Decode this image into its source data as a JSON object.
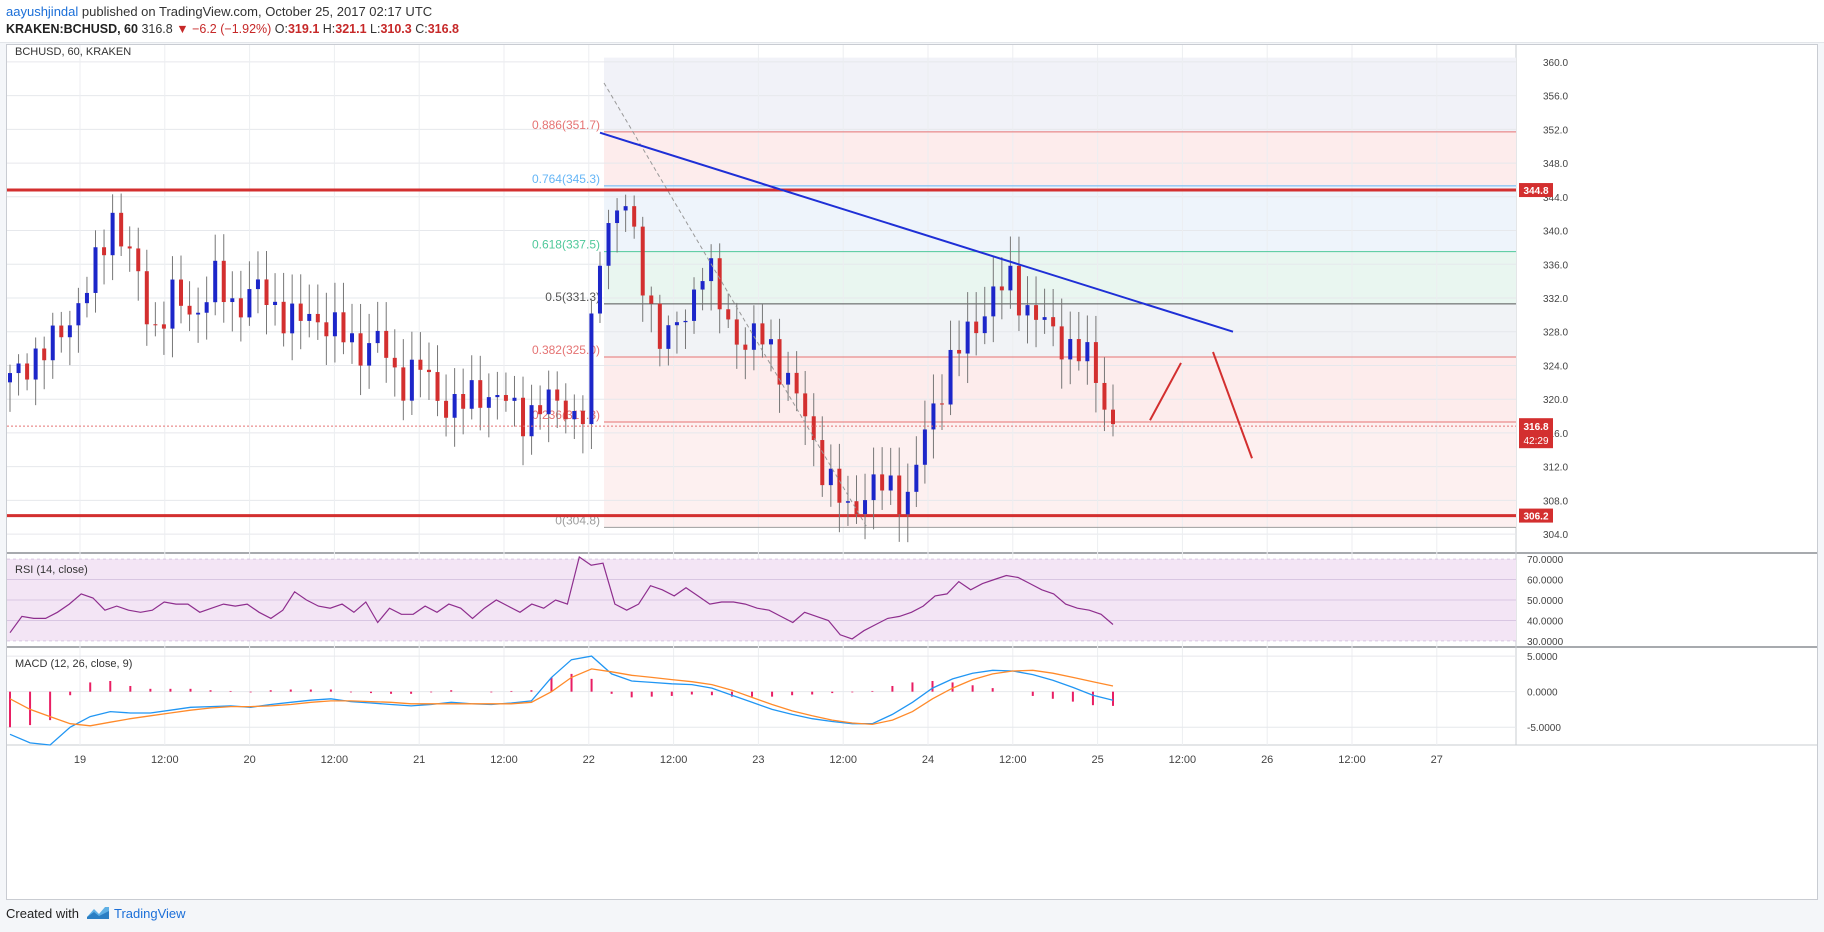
{
  "header": {
    "author": "aayushjindal",
    "published": " published on TradingView.com, October 25, 2017 02:17 UTC",
    "symbol": "KRAKEN:BCHUSD, 60",
    "last": "316.8",
    "change_arrow": "▼",
    "change": "−6.2 (−1.92%)",
    "o_label": "O:",
    "o": "319.1",
    "h_label": "H:",
    "h": "321.1",
    "l_label": "L:",
    "l": "310.3",
    "c_label": "C:",
    "c": "316.8"
  },
  "footer": {
    "created": "Created with",
    "brand": "TradingView"
  },
  "colors": {
    "up": "#1c26c9",
    "down": "#d32f2f",
    "trend": "#1e2fd6",
    "fib_red": "#e57373",
    "fib_green": "#4fc89a",
    "rsi": "#8e2e8e",
    "macd": "#2196f3",
    "signal": "#ff8a2a",
    "hist": "#e91e63",
    "rsi_bg": "#f3e5f5"
  },
  "chart_data": [
    {
      "type": "candlestick",
      "title": "BCHUSD, 60, KRAKEN",
      "ylim": [
        302,
        362
      ],
      "y_ticks": [
        "360.0",
        "356.0",
        "352.0",
        "348.0",
        "344.0",
        "340.0",
        "336.0",
        "332.0",
        "328.0",
        "324.0",
        "320.0",
        "316.0",
        "312.0",
        "308.0",
        "304.0"
      ],
      "x_ticks": [
        "19",
        "12:00",
        "20",
        "12:00",
        "21",
        "12:00",
        "22",
        "12:00",
        "23",
        "12:00",
        "24",
        "12:00",
        "25",
        "12:00",
        "26",
        "12:00",
        "27"
      ],
      "horizontal_levels": [
        {
          "price": 344.8,
          "label": "344.8",
          "color": "#d32f2f"
        },
        {
          "price": 306.2,
          "label": "306.2",
          "color": "#d32f2f"
        }
      ],
      "price_tag": {
        "price": 316.8,
        "label": "316.8",
        "countdown": "42:29"
      },
      "fibonacci": [
        {
          "label": "0.886(351.7)",
          "price": 351.7,
          "color": "#e57373"
        },
        {
          "label": "0.764(345.3)",
          "price": 345.3,
          "color": "#64b5f6"
        },
        {
          "label": "0.618(337.5)",
          "price": 337.5,
          "color": "#4fc89a"
        },
        {
          "label": "0.5(331.3)",
          "price": 331.3,
          "color": "#555555"
        },
        {
          "label": "0.382(325.0)",
          "price": 325.0,
          "color": "#e57373"
        },
        {
          "label": "0.236(317.3)",
          "price": 317.3,
          "color": "#e57373"
        },
        {
          "label": "0(304.8)",
          "price": 304.8,
          "color": "#9e9e9e"
        }
      ],
      "trendline": [
        {
          "t": 0,
          "price": 351.6
        },
        {
          "t": 1,
          "price": 328.0
        }
      ],
      "ohlc_close_path": [
        322.0,
        325.0,
        326.0,
        330.0,
        334.0,
        342.0,
        336.0,
        328.0,
        332.0,
        330.0,
        334.0,
        331.0,
        333.0,
        331.0,
        329.0,
        330.0,
        328.0,
        326.0,
        327.0,
        322.0,
        324.0,
        320.0,
        319.0,
        321.0,
        320.0,
        318.0,
        319.0,
        320.0,
        316.8,
        340.0,
        344.0,
        334.0,
        326.0,
        330.0,
        336.0,
        330.0,
        326.0,
        328.0,
        322.0,
        318.0,
        310.0,
        307.0,
        309.0,
        310.0,
        308.0,
        318.0,
        324.0,
        328.0,
        332.0,
        334.0,
        330.0,
        328.0,
        326.0,
        324.0,
        316.8
      ]
    },
    {
      "type": "line",
      "title": "RSI (14, close)",
      "ylim": [
        28,
        72
      ],
      "y_ticks": [
        "70.0000",
        "60.0000",
        "50.0000",
        "40.0000",
        "30.0000"
      ],
      "values": [
        34,
        42,
        41,
        41,
        44,
        48,
        53,
        51,
        45,
        47,
        45,
        44,
        45,
        49,
        48,
        48,
        44,
        46,
        48,
        47,
        48,
        44,
        41,
        45,
        54,
        50,
        47,
        46,
        48,
        44,
        49,
        39,
        46,
        43,
        43,
        47,
        44,
        48,
        46,
        41,
        46,
        50,
        47,
        44,
        48,
        46,
        50,
        48,
        71,
        67,
        68,
        48,
        45,
        48,
        57,
        55,
        52,
        56,
        52,
        48,
        49,
        49,
        48,
        46,
        45,
        42,
        39,
        44,
        42,
        40,
        33,
        31,
        35,
        38,
        41,
        42,
        44,
        47,
        52,
        53,
        59,
        55,
        58,
        60,
        62,
        61,
        58,
        55,
        53,
        48,
        46,
        45,
        43,
        38
      ]
    },
    {
      "type": "line",
      "title": "MACD (12, 26, close, 9)",
      "ylim": [
        -7.5,
        6
      ],
      "y_ticks": [
        "5.0000",
        "0.0000",
        "-5.0000"
      ],
      "series": [
        {
          "name": "MACD",
          "values": [
            -6,
            -7.2,
            -7.5,
            -5,
            -3.5,
            -2.8,
            -3,
            -3,
            -2.6,
            -2.2,
            -2.1,
            -2,
            -2.2,
            -1.8,
            -1.5,
            -1.2,
            -1,
            -1.4,
            -1.6,
            -1.8,
            -2,
            -1.8,
            -1.5,
            -1.7,
            -1.8,
            -1.6,
            -1.3,
            2,
            4.5,
            5,
            2.5,
            1.5,
            1.3,
            1.1,
            1,
            0.5,
            -0.5,
            -1.5,
            -2.5,
            -3.2,
            -3.8,
            -4.2,
            -4.5,
            -4.5,
            -3.2,
            -1.5,
            0.5,
            1.8,
            2.6,
            3,
            2.9,
            2.4,
            1.6,
            0.6,
            -0.5,
            -1.2
          ]
        },
        {
          "name": "Signal",
          "values": [
            -1,
            -2.5,
            -3.5,
            -4.5,
            -4.8,
            -4.3,
            -3.8,
            -3.4,
            -3,
            -2.6,
            -2.3,
            -2.1,
            -2.1,
            -2,
            -1.8,
            -1.5,
            -1.3,
            -1.3,
            -1.4,
            -1.5,
            -1.7,
            -1.7,
            -1.7,
            -1.7,
            -1.7,
            -1.7,
            -1.5,
            0,
            2,
            3.2,
            2.8,
            2.3,
            2,
            1.7,
            1.4,
            1,
            0.2,
            -0.8,
            -1.8,
            -2.7,
            -3.4,
            -4,
            -4.4,
            -4.6,
            -4,
            -2.8,
            -1,
            0.5,
            1.7,
            2.5,
            2.9,
            3,
            2.6,
            2,
            1.4,
            0.8
          ]
        },
        {
          "name": "Histogram",
          "values": [
            -5,
            -4.7,
            -4,
            -0.5,
            1.3,
            1.5,
            0.8,
            0.4,
            0.4,
            0.4,
            0.2,
            0.1,
            -0.1,
            0.2,
            0.3,
            0.3,
            0.3,
            -0.1,
            -0.2,
            -0.3,
            -0.3,
            -0.1,
            0.2,
            0,
            -0.1,
            0.1,
            0.2,
            2,
            2.5,
            1.8,
            -0.3,
            -0.8,
            -0.7,
            -0.6,
            -0.4,
            -0.5,
            -0.7,
            -0.7,
            -0.7,
            -0.5,
            -0.4,
            -0.2,
            -0.1,
            0.1,
            0.8,
            1.3,
            1.5,
            1.3,
            0.9,
            0.5,
            0,
            -0.6,
            -1,
            -1.4,
            -1.9,
            -2
          ]
        }
      ]
    }
  ]
}
